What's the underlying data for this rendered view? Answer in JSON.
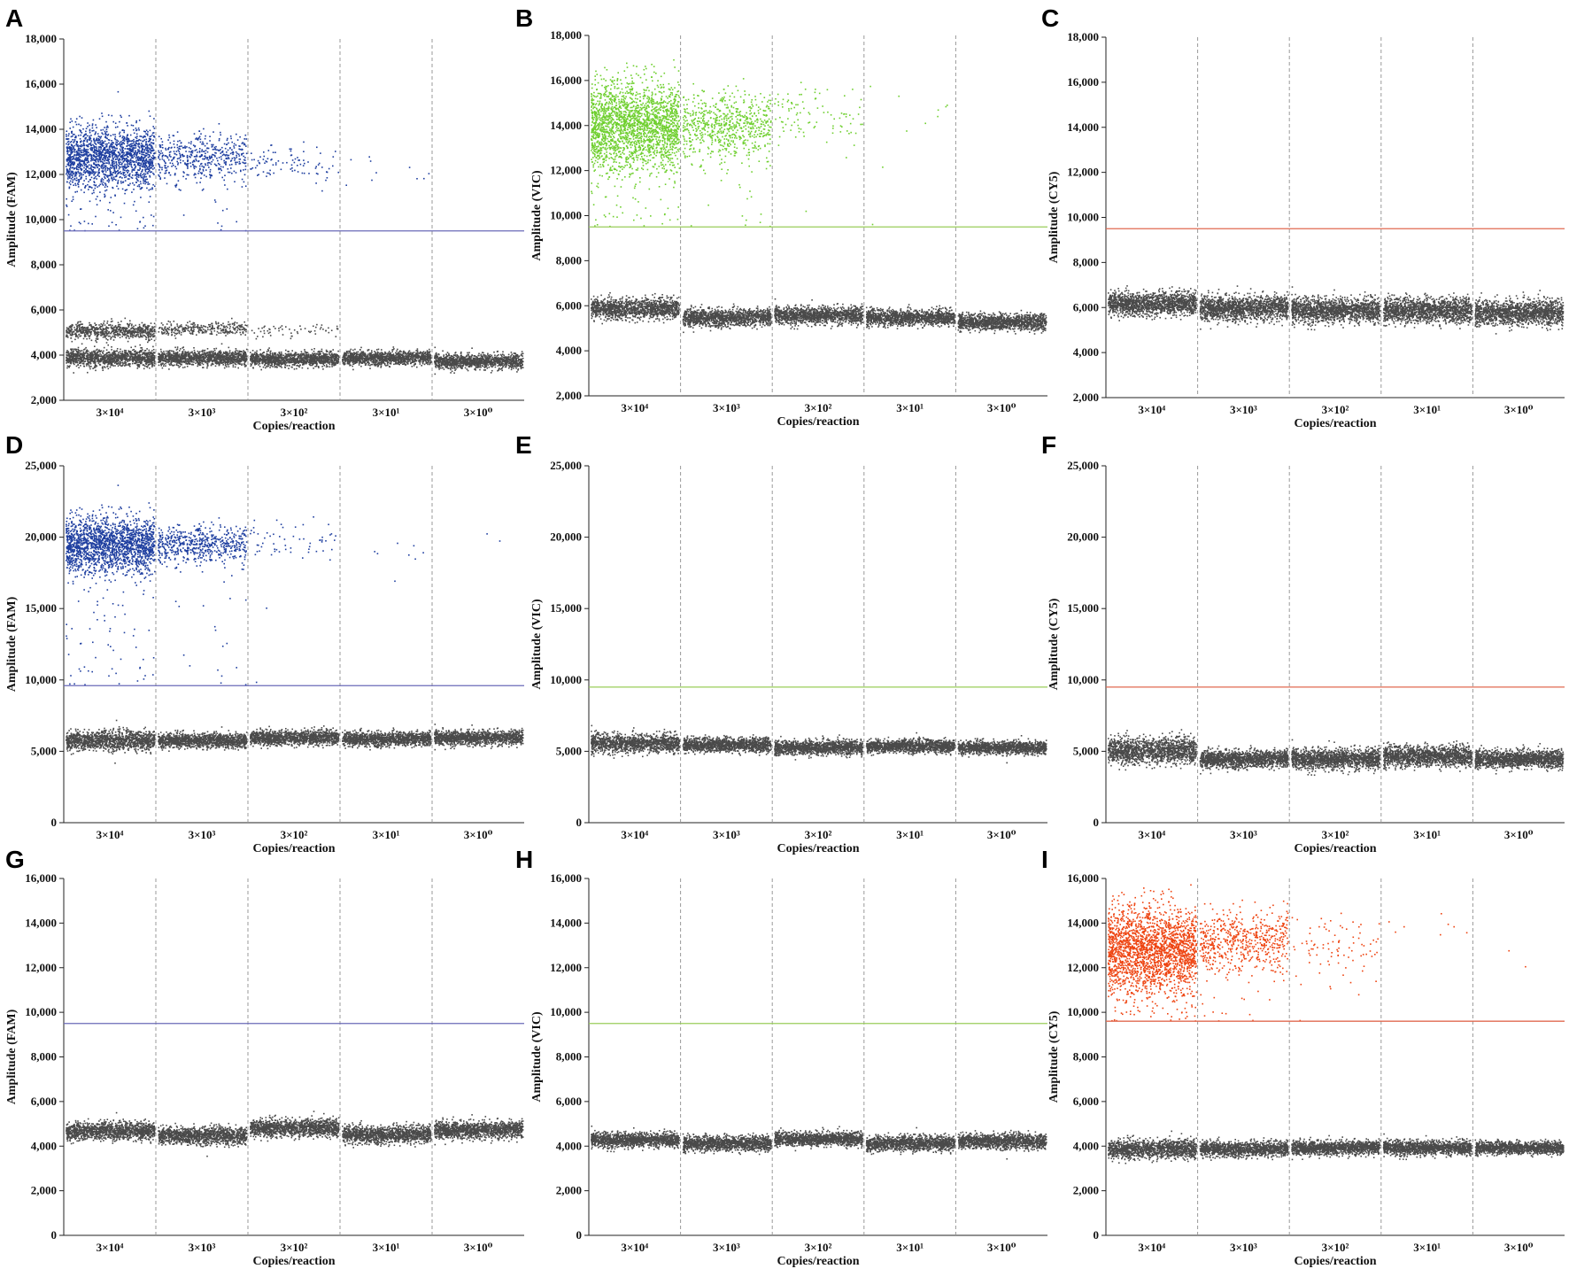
{
  "figure": {
    "xlabel": "Copies/reaction",
    "categories": [
      "3×10⁴",
      "3×10³",
      "3×10²",
      "3×10¹",
      "3×10⁰"
    ],
    "colors": {
      "FAM": "#1f3fa0",
      "VIC": "#6fcf2f",
      "CY5": "#ee4411",
      "negative": "#4a4a4a",
      "threshold_FAM": "#6a6ab8",
      "threshold_VIC": "#9acd5a",
      "threshold_CY5": "#e06a50",
      "divider": "#999999"
    }
  },
  "chart_data": [
    {
      "panel": "A",
      "type": "scatter",
      "ylabel": "Amplitude (FAM)",
      "xlabel": "Copies/reaction",
      "categories": [
        "3×10⁴",
        "3×10³",
        "3×10²",
        "3×10¹",
        "3×10⁰"
      ],
      "ylim": [
        2000,
        18000
      ],
      "yticks": [
        "2,000",
        "4,000",
        "6,000",
        "8,000",
        "10,000",
        "12,000",
        "14,000",
        "16,000",
        "18,000"
      ],
      "ytick_values": [
        2000,
        4000,
        6000,
        8000,
        10000,
        12000,
        14000,
        16000,
        18000
      ],
      "threshold": 9500,
      "channel": "FAM",
      "positive_color": "#1f3fa0",
      "positive_clusters": [
        {
          "lane": 0,
          "center": 12800,
          "spread": 900,
          "count": 1800
        },
        {
          "lane": 1,
          "center": 12800,
          "spread": 700,
          "count": 500
        },
        {
          "lane": 2,
          "center": 12400,
          "spread": 600,
          "count": 90
        },
        {
          "lane": 3,
          "center": 12300,
          "spread": 500,
          "count": 10
        }
      ],
      "negative_clusters": [
        {
          "lane": 0,
          "center": 3900,
          "spread": 350,
          "count": 1200
        },
        {
          "lane": 0,
          "center": 5100,
          "spread": 300,
          "count": 700
        },
        {
          "lane": 1,
          "center": 3900,
          "spread": 300,
          "count": 1200
        },
        {
          "lane": 1,
          "center": 5200,
          "spread": 250,
          "count": 300
        },
        {
          "lane": 2,
          "center": 3850,
          "spread": 280,
          "count": 1200
        },
        {
          "lane": 2,
          "center": 5100,
          "spread": 300,
          "count": 60
        },
        {
          "lane": 3,
          "center": 3900,
          "spread": 280,
          "count": 1200
        },
        {
          "lane": 4,
          "center": 3750,
          "spread": 300,
          "count": 1200
        }
      ]
    },
    {
      "panel": "B",
      "type": "scatter",
      "ylabel": "Amplitude (VIC)",
      "xlabel": "Copies/reaction",
      "categories": [
        "3×10⁴",
        "3×10³",
        "3×10²",
        "3×10¹",
        "3×10⁰"
      ],
      "ylim": [
        2000,
        18000
      ],
      "yticks": [
        "2,000",
        "4,000",
        "6,000",
        "8,000",
        "10,000",
        "12,000",
        "14,000",
        "16,000",
        "18,000"
      ],
      "ytick_values": [
        2000,
        4000,
        6000,
        8000,
        10000,
        12000,
        14000,
        16000,
        18000
      ],
      "threshold": 9500,
      "channel": "VIC",
      "positive_color": "#6fcf2f",
      "positive_clusters": [
        {
          "lane": 0,
          "center": 14000,
          "spread": 1300,
          "count": 2200
        },
        {
          "lane": 1,
          "center": 14000,
          "spread": 1000,
          "count": 700
        },
        {
          "lane": 2,
          "center": 14500,
          "spread": 900,
          "count": 100
        },
        {
          "lane": 3,
          "center": 14500,
          "spread": 800,
          "count": 10
        }
      ],
      "negative_clusters": [
        {
          "lane": 0,
          "center": 5900,
          "spread": 400,
          "count": 1300
        },
        {
          "lane": 1,
          "center": 5500,
          "spread": 350,
          "count": 1300
        },
        {
          "lane": 2,
          "center": 5600,
          "spread": 350,
          "count": 1300
        },
        {
          "lane": 3,
          "center": 5500,
          "spread": 320,
          "count": 1300
        },
        {
          "lane": 4,
          "center": 5300,
          "spread": 320,
          "count": 1300
        }
      ]
    },
    {
      "panel": "C",
      "type": "scatter",
      "ylabel": "Amplitude (CY5)",
      "xlabel": "Copies/reaction",
      "categories": [
        "3×10⁴",
        "3×10³",
        "3×10²",
        "3×10¹",
        "3×10⁰"
      ],
      "ylim": [
        2000,
        18000
      ],
      "yticks": [
        "2,000",
        "4,000",
        "6,000",
        "8,000",
        "10,000",
        "12,000",
        "14,000",
        "16,000",
        "18,000"
      ],
      "ytick_values": [
        2000,
        4000,
        6000,
        8000,
        10000,
        12000,
        14000,
        16000,
        18000
      ],
      "threshold": 9500,
      "channel": "CY5",
      "positive_color": "#ee4411",
      "positive_clusters": [],
      "negative_clusters": [
        {
          "lane": 0,
          "center": 6200,
          "spread": 450,
          "count": 1500
        },
        {
          "lane": 1,
          "center": 6000,
          "spread": 500,
          "count": 1500
        },
        {
          "lane": 2,
          "center": 5900,
          "spread": 500,
          "count": 1500
        },
        {
          "lane": 3,
          "center": 5900,
          "spread": 500,
          "count": 1500
        },
        {
          "lane": 4,
          "center": 5800,
          "spread": 500,
          "count": 1500
        }
      ]
    },
    {
      "panel": "D",
      "type": "scatter",
      "ylabel": "Amplitude (FAM)",
      "xlabel": "Copies/reaction",
      "categories": [
        "3×10⁴",
        "3×10³",
        "3×10²",
        "3×10¹",
        "3×10⁰"
      ],
      "ylim": [
        0,
        25000
      ],
      "yticks": [
        "0",
        "5,000",
        "10,000",
        "15,000",
        "20,000",
        "25,000"
      ],
      "ytick_values": [
        0,
        5000,
        10000,
        15000,
        20000,
        25000
      ],
      "threshold": 9600,
      "channel": "FAM",
      "positive_color": "#1f3fa0",
      "positive_clusters": [
        {
          "lane": 0,
          "center": 19500,
          "spread": 1300,
          "count": 1900
        },
        {
          "lane": 1,
          "center": 19500,
          "spread": 900,
          "count": 600
        },
        {
          "lane": 2,
          "center": 19800,
          "spread": 900,
          "count": 60
        },
        {
          "lane": 3,
          "center": 19200,
          "spread": 700,
          "count": 8
        },
        {
          "lane": 4,
          "center": 20000,
          "spread": 300,
          "count": 2
        }
      ],
      "negative_clusters": [
        {
          "lane": 0,
          "center": 5800,
          "spread": 600,
          "count": 1300
        },
        {
          "lane": 1,
          "center": 5800,
          "spread": 450,
          "count": 1300
        },
        {
          "lane": 2,
          "center": 6000,
          "spread": 450,
          "count": 1300
        },
        {
          "lane": 3,
          "center": 5900,
          "spread": 450,
          "count": 1300
        },
        {
          "lane": 4,
          "center": 6000,
          "spread": 450,
          "count": 1300
        }
      ]
    },
    {
      "panel": "E",
      "type": "scatter",
      "ylabel": "Amplitude (VIC)",
      "xlabel": "Copies/reaction",
      "categories": [
        "3×10⁴",
        "3×10³",
        "3×10²",
        "3×10¹",
        "3×10⁰"
      ],
      "ylim": [
        0,
        25000
      ],
      "yticks": [
        "0",
        "5,000",
        "10,000",
        "15,000",
        "20,000",
        "25,000"
      ],
      "ytick_values": [
        0,
        5000,
        10000,
        15000,
        20000,
        25000
      ],
      "threshold": 9500,
      "channel": "VIC",
      "positive_color": "#6fcf2f",
      "positive_clusters": [],
      "negative_clusters": [
        {
          "lane": 0,
          "center": 5600,
          "spread": 600,
          "count": 1300
        },
        {
          "lane": 1,
          "center": 5500,
          "spread": 450,
          "count": 1300
        },
        {
          "lane": 2,
          "center": 5300,
          "spread": 450,
          "count": 1300
        },
        {
          "lane": 3,
          "center": 5400,
          "spread": 400,
          "count": 1300
        },
        {
          "lane": 4,
          "center": 5300,
          "spread": 400,
          "count": 1300
        }
      ]
    },
    {
      "panel": "F",
      "type": "scatter",
      "ylabel": "Amplitude (CY5)",
      "xlabel": "Copies/reaction",
      "categories": [
        "3×10⁴",
        "3×10³",
        "3×10²",
        "3×10¹",
        "3×10⁰"
      ],
      "ylim": [
        0,
        25000
      ],
      "yticks": [
        "0",
        "5,000",
        "10,000",
        "15,000",
        "20,000",
        "25,000"
      ],
      "ytick_values": [
        0,
        5000,
        10000,
        15000,
        20000,
        25000
      ],
      "threshold": 9500,
      "channel": "CY5",
      "positive_color": "#ee4411",
      "positive_clusters": [],
      "negative_clusters": [
        {
          "lane": 0,
          "center": 5100,
          "spread": 800,
          "count": 1500
        },
        {
          "lane": 1,
          "center": 4500,
          "spread": 550,
          "count": 1500
        },
        {
          "lane": 2,
          "center": 4500,
          "spread": 650,
          "count": 1500
        },
        {
          "lane": 3,
          "center": 4700,
          "spread": 650,
          "count": 1500
        },
        {
          "lane": 4,
          "center": 4500,
          "spread": 550,
          "count": 1500
        }
      ]
    },
    {
      "panel": "G",
      "type": "scatter",
      "ylabel": "Amplitude (FAM)",
      "xlabel": "Copies/reaction",
      "categories": [
        "3×10⁴",
        "3×10³",
        "3×10²",
        "3×10¹",
        "3×10⁰"
      ],
      "ylim": [
        0,
        16000
      ],
      "yticks": [
        "0",
        "2,000",
        "4,000",
        "6,000",
        "8,000",
        "10,000",
        "12,000",
        "14,000",
        "16,000"
      ],
      "ytick_values": [
        0,
        2000,
        4000,
        6000,
        8000,
        10000,
        12000,
        14000,
        16000
      ],
      "threshold": 9500,
      "channel": "FAM",
      "positive_color": "#1f3fa0",
      "positive_clusters": [],
      "negative_clusters": [
        {
          "lane": 0,
          "center": 4700,
          "spread": 350,
          "count": 1300
        },
        {
          "lane": 1,
          "center": 4500,
          "spread": 350,
          "count": 1300
        },
        {
          "lane": 2,
          "center": 4850,
          "spread": 350,
          "count": 1300
        },
        {
          "lane": 3,
          "center": 4550,
          "spread": 350,
          "count": 1300
        },
        {
          "lane": 4,
          "center": 4750,
          "spread": 350,
          "count": 1300
        }
      ]
    },
    {
      "panel": "H",
      "type": "scatter",
      "ylabel": "Amplitude (VIC)",
      "xlabel": "Copies/reaction",
      "categories": [
        "3×10⁴",
        "3×10³",
        "3×10²",
        "3×10¹",
        "3×10⁰"
      ],
      "ylim": [
        0,
        16000
      ],
      "yticks": [
        "0",
        "2,000",
        "4,000",
        "6,000",
        "8,000",
        "10,000",
        "12,000",
        "14,000",
        "16,000"
      ],
      "ytick_values": [
        0,
        2000,
        4000,
        6000,
        8000,
        10000,
        12000,
        14000,
        16000
      ],
      "threshold": 9500,
      "channel": "VIC",
      "positive_color": "#6fcf2f",
      "positive_clusters": [],
      "negative_clusters": [
        {
          "lane": 0,
          "center": 4300,
          "spread": 300,
          "count": 1300
        },
        {
          "lane": 1,
          "center": 4150,
          "spread": 300,
          "count": 1300
        },
        {
          "lane": 2,
          "center": 4350,
          "spread": 280,
          "count": 1300
        },
        {
          "lane": 3,
          "center": 4150,
          "spread": 300,
          "count": 1300
        },
        {
          "lane": 4,
          "center": 4250,
          "spread": 300,
          "count": 1300
        }
      ]
    },
    {
      "panel": "I",
      "type": "scatter",
      "ylabel": "Amplitude (CY5)",
      "xlabel": "Copies/reaction",
      "categories": [
        "3×10⁴",
        "3×10³",
        "3×10²",
        "3×10¹",
        "3×10⁰"
      ],
      "ylim": [
        0,
        16000
      ],
      "yticks": [
        "0",
        "2,000",
        "4,000",
        "6,000",
        "8,000",
        "10,000",
        "12,000",
        "14,000",
        "16,000"
      ],
      "ytick_values": [
        0,
        2000,
        4000,
        6000,
        8000,
        10000,
        12000,
        14000,
        16000
      ],
      "threshold": 9600,
      "channel": "CY5",
      "positive_color": "#ee4411",
      "positive_clusters": [
        {
          "lane": 0,
          "center": 12800,
          "spread": 1300,
          "count": 2200
        },
        {
          "lane": 1,
          "center": 13200,
          "spread": 900,
          "count": 600
        },
        {
          "lane": 2,
          "center": 13000,
          "spread": 1000,
          "count": 90
        },
        {
          "lane": 3,
          "center": 13800,
          "spread": 500,
          "count": 8
        },
        {
          "lane": 4,
          "center": 12500,
          "spread": 600,
          "count": 2
        }
      ],
      "negative_clusters": [
        {
          "lane": 0,
          "center": 3900,
          "spread": 380,
          "count": 1300
        },
        {
          "lane": 1,
          "center": 3900,
          "spread": 300,
          "count": 1300
        },
        {
          "lane": 2,
          "center": 3950,
          "spread": 280,
          "count": 1300
        },
        {
          "lane": 3,
          "center": 3950,
          "spread": 300,
          "count": 1300
        },
        {
          "lane": 4,
          "center": 3950,
          "spread": 250,
          "count": 1300
        }
      ]
    }
  ]
}
